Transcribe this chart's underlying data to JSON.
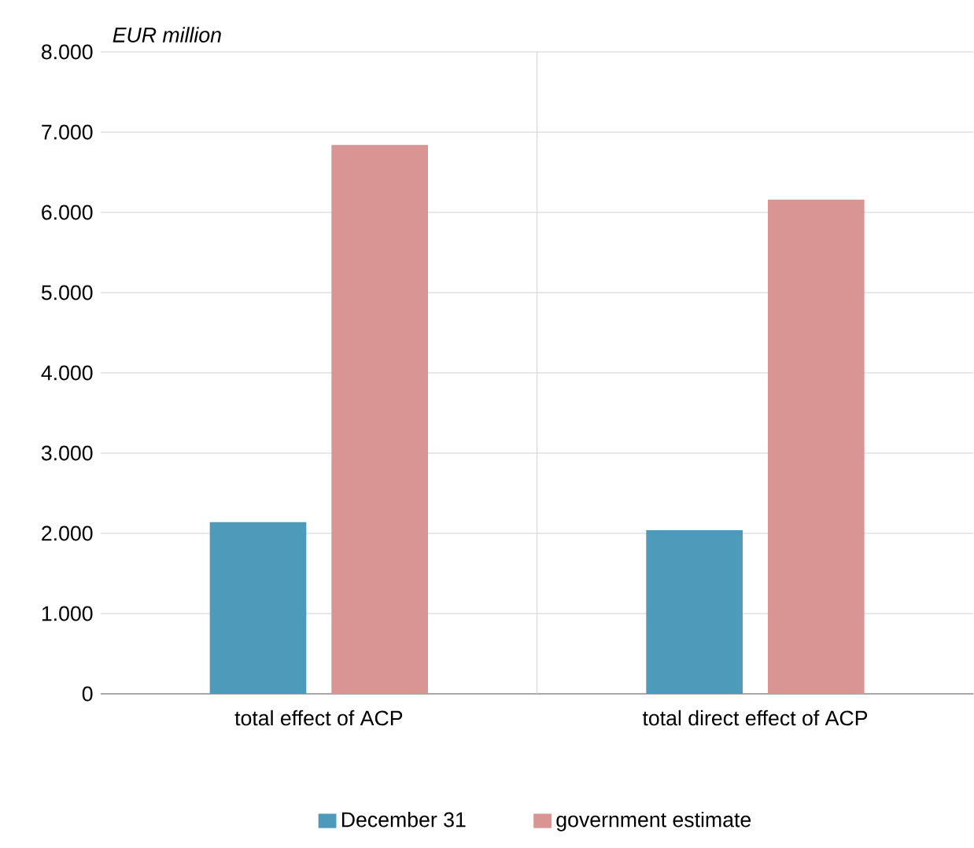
{
  "chart_data": {
    "type": "bar",
    "ylabel": "EUR million",
    "categories": [
      "total effect of ACP",
      "total direct effect of ACP"
    ],
    "series": [
      {
        "name": "December 31",
        "color": "#4e9aba",
        "values": [
          2140,
          2040
        ]
      },
      {
        "name": "government estimate",
        "color": "#d99594",
        "values": [
          6840,
          6160
        ]
      }
    ],
    "ylim": [
      0,
      8000
    ],
    "yticks": [
      {
        "value": 0,
        "label": "0"
      },
      {
        "value": 1000,
        "label": "1.000"
      },
      {
        "value": 2000,
        "label": "2.000"
      },
      {
        "value": 3000,
        "label": "3.000"
      },
      {
        "value": 4000,
        "label": "4.000"
      },
      {
        "value": 5000,
        "label": "5.000"
      },
      {
        "value": 6000,
        "label": "6.000"
      },
      {
        "value": 7000,
        "label": "7.000"
      },
      {
        "value": 8000,
        "label": "8.000"
      }
    ],
    "grid": "y",
    "legend": "bottom"
  }
}
